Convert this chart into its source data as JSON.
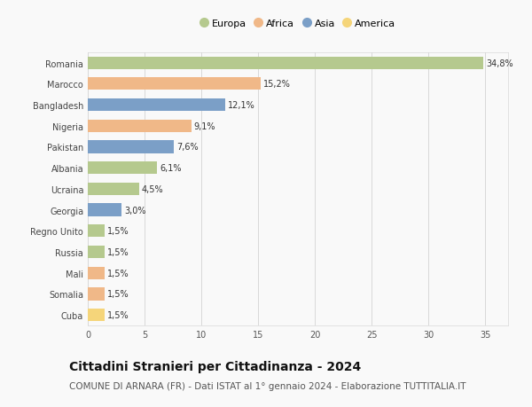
{
  "countries": [
    "Romania",
    "Marocco",
    "Bangladesh",
    "Nigeria",
    "Pakistan",
    "Albania",
    "Ucraina",
    "Georgia",
    "Regno Unito",
    "Russia",
    "Mali",
    "Somalia",
    "Cuba"
  ],
  "values": [
    34.8,
    15.2,
    12.1,
    9.1,
    7.6,
    6.1,
    4.5,
    3.0,
    1.5,
    1.5,
    1.5,
    1.5,
    1.5
  ],
  "labels": [
    "34,8%",
    "15,2%",
    "12,1%",
    "9,1%",
    "7,6%",
    "6,1%",
    "4,5%",
    "3,0%",
    "1,5%",
    "1,5%",
    "1,5%",
    "1,5%",
    "1,5%"
  ],
  "continents": [
    "Europa",
    "Africa",
    "Asia",
    "Africa",
    "Asia",
    "Europa",
    "Europa",
    "Asia",
    "Europa",
    "Europa",
    "Africa",
    "Africa",
    "America"
  ],
  "colors": {
    "Europa": "#b5c98e",
    "Africa": "#f0b888",
    "Asia": "#7b9fc7",
    "America": "#f5d57a"
  },
  "legend_order": [
    "Europa",
    "Africa",
    "Asia",
    "America"
  ],
  "title": "Cittadini Stranieri per Cittadinanza - 2024",
  "subtitle": "COMUNE DI ARNARA (FR) - Dati ISTAT al 1° gennaio 2024 - Elaborazione TUTTITALIA.IT",
  "xlim": [
    0,
    37
  ],
  "xticks": [
    0,
    5,
    10,
    15,
    20,
    25,
    30,
    35
  ],
  "background_color": "#f9f9f9",
  "grid_color": "#d8d8d8",
  "bar_height": 0.6,
  "title_fontsize": 10,
  "subtitle_fontsize": 7.5,
  "label_fontsize": 7,
  "tick_fontsize": 7,
  "legend_fontsize": 8
}
